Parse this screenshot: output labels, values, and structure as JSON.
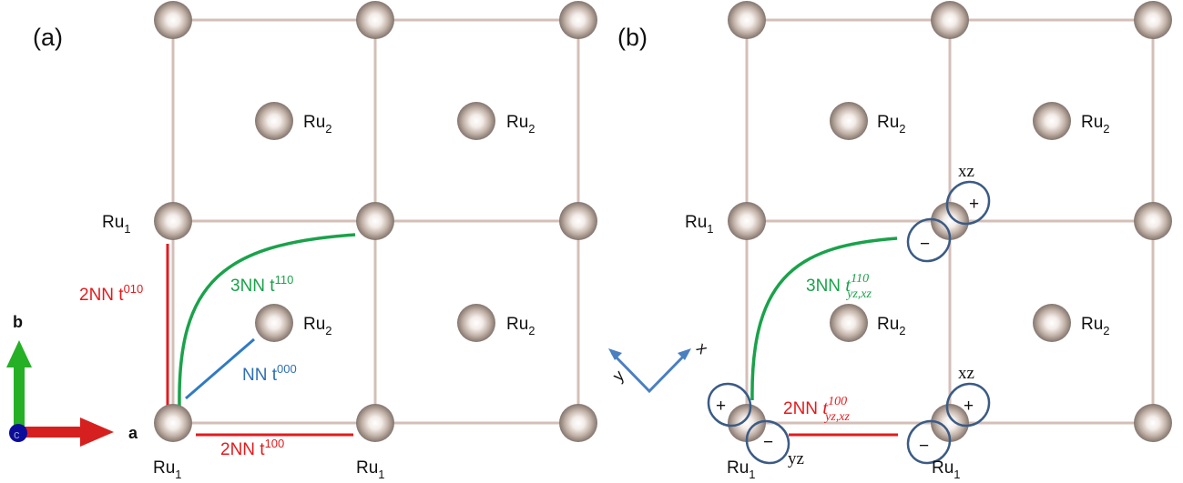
{
  "panels": {
    "a": {
      "label": "(a)"
    },
    "b": {
      "label": "(b)"
    }
  },
  "atoms": {
    "ru1": "Ru",
    "ru2": "Ru",
    "sub1": "1",
    "sub2": "2"
  },
  "axes": {
    "b": "b",
    "a": "a",
    "c": "c"
  },
  "local_axes": {
    "x": "x",
    "y": "y"
  },
  "hoppings_a": {
    "nn": {
      "base": "NN t",
      "sup": "000"
    },
    "nn2_vert": {
      "base": "2NN t",
      "sup": "010"
    },
    "nn2_horiz": {
      "base": "2NN t",
      "sup": "100"
    },
    "nn3": {
      "base": "3NN t",
      "sup": "110"
    }
  },
  "hoppings_b": {
    "nn3": {
      "base": "3NN ",
      "t": "t",
      "sup": "110",
      "sub": "yz,xz"
    },
    "nn2": {
      "base": "2NN ",
      "t": "t",
      "sup": "100",
      "sub": "yz,xz"
    }
  },
  "orbitals": {
    "xz": "xz",
    "yz": "yz",
    "plus": "+",
    "minus": "−"
  },
  "colors": {
    "nn": "#2f6fb3",
    "nn2": "#e41a1c",
    "nn3": "#1aa24a",
    "bond": "#d4bfb8",
    "orbital": "#3b5b85"
  }
}
